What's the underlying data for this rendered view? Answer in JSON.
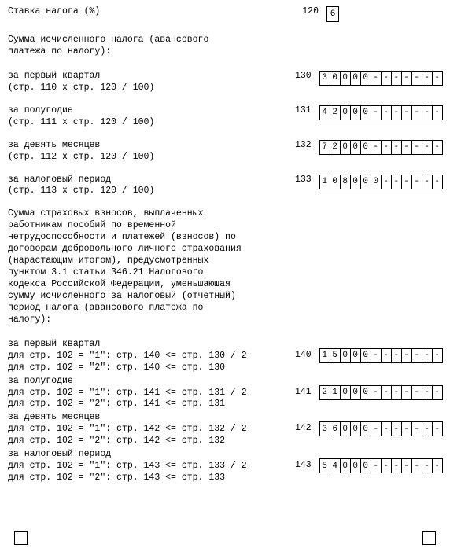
{
  "r120": {
    "label": "Ставка налога (%)",
    "code": "120",
    "cells": [
      "6"
    ]
  },
  "heading_tax": "Сумма исчисленного налога (авансового\nплатежа по налогу):",
  "r130": {
    "l1": "за первый квартал",
    "l2": "(стр. 110 х стр. 120 / 100)",
    "code": "130",
    "cells": [
      "3",
      "0",
      "0",
      "0",
      "0",
      "-",
      "-",
      "-",
      "-",
      "-",
      "-",
      "-"
    ]
  },
  "r131": {
    "l1": "за полугодие",
    "l2": "(стр. 111 х стр. 120 / 100)",
    "code": "131",
    "cells": [
      "4",
      "2",
      "0",
      "0",
      "0",
      "-",
      "-",
      "-",
      "-",
      "-",
      "-",
      "-"
    ]
  },
  "r132": {
    "l1": "за девять месяцев",
    "l2": "(стр. 112 х стр. 120 / 100)",
    "code": "132",
    "cells": [
      "7",
      "2",
      "0",
      "0",
      "0",
      "-",
      "-",
      "-",
      "-",
      "-",
      "-",
      "-"
    ]
  },
  "r133": {
    "l1": "за налоговый период",
    "l2": "(стр. 113 х стр. 120 / 100)",
    "code": "133",
    "cells": [
      "1",
      "0",
      "8",
      "0",
      "0",
      "0",
      "-",
      "-",
      "-",
      "-",
      "-",
      "-"
    ]
  },
  "heading_ins": "Сумма страховых взносов, выплаченных\nработникам пособий по временной\nнетрудоспособности и платежей (взносов) по\nдоговорам добровольного личного страхования\n(нарастающим итогом), предусмотренных\nпунктом 3.1 статьи 346.21 Налогового\nкодекса Российской Федерации, уменьшающая\nсумму исчисленного за налоговый (отчетный)\nпериод налога (авансового платежа по\nналогу):",
  "r140": {
    "l1": "за первый квартал",
    "l2": "для стр. 102 = \"1\": стр. 140 <= стр. 130 / 2",
    "l3": "для стр. 102 = \"2\": стр. 140 <= стр. 130",
    "code": "140",
    "cells": [
      "1",
      "5",
      "0",
      "0",
      "0",
      "-",
      "-",
      "-",
      "-",
      "-",
      "-",
      "-"
    ]
  },
  "r141": {
    "l1": "за полугодие",
    "l2": "для стр. 102 = \"1\": стр. 141 <= стр. 131 / 2",
    "l3": "для стр. 102 = \"2\": стр. 141 <= стр. 131",
    "code": "141",
    "cells": [
      "2",
      "1",
      "0",
      "0",
      "0",
      "-",
      "-",
      "-",
      "-",
      "-",
      "-",
      "-"
    ]
  },
  "r142": {
    "l1": "за девять месяцев",
    "l2": "для стр. 102 = \"1\": стр. 142 <= стр. 132 / 2",
    "l3": "для стр. 102 = \"2\": стр. 142 <= стр. 132",
    "code": "142",
    "cells": [
      "3",
      "6",
      "0",
      "0",
      "0",
      "-",
      "-",
      "-",
      "-",
      "-",
      "-",
      "-"
    ]
  },
  "r143": {
    "l1": "за налоговый период",
    "l2": "для стр. 102 = \"1\": стр. 143 <= стр. 133 / 2",
    "l3": "для стр. 102 = \"2\": стр. 143 <= стр. 133",
    "code": "143",
    "cells": [
      "5",
      "4",
      "0",
      "0",
      "0",
      "-",
      "-",
      "-",
      "-",
      "-",
      "-",
      "-"
    ]
  }
}
